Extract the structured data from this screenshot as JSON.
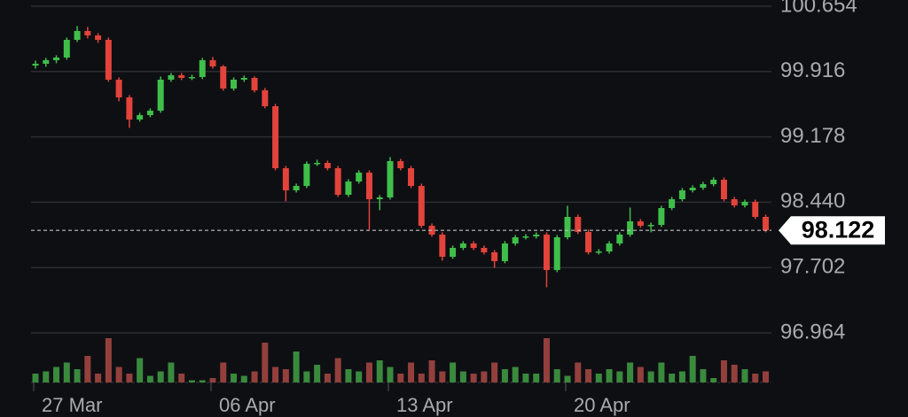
{
  "chart_data": {
    "type": "candlestick",
    "x": [
      "27 Mar",
      null,
      null,
      null,
      null,
      null,
      null,
      null,
      null,
      null,
      null,
      null,
      null,
      null,
      null,
      null,
      null,
      "06 Apr",
      null,
      null,
      null,
      null,
      null,
      null,
      null,
      null,
      null,
      null,
      null,
      null,
      null,
      null,
      null,
      null,
      "13 Apr",
      null,
      null,
      null,
      null,
      null,
      null,
      null,
      null,
      null,
      null,
      null,
      null,
      null,
      null,
      null,
      null,
      "20 Apr",
      null,
      null,
      null,
      null,
      null,
      null,
      null,
      null,
      null,
      null,
      null,
      null,
      null,
      null,
      null,
      null,
      null,
      null,
      null
    ],
    "open": [
      99.984,
      100.004,
      100.044,
      100.074,
      100.274,
      100.374,
      100.324,
      100.274,
      99.824,
      99.624,
      99.374,
      99.424,
      99.474,
      99.824,
      99.874,
      99.844,
      99.854,
      100.044,
      99.974,
      99.724,
      99.824,
      99.844,
      99.704,
      99.524,
      98.824,
      98.574,
      98.624,
      98.874,
      98.884,
      98.824,
      98.524,
      98.674,
      98.774,
      98.474,
      98.494,
      98.904,
      98.824,
      98.624,
      98.174,
      98.074,
      97.824,
      97.924,
      97.974,
      97.924,
      97.874,
      97.774,
      97.974,
      98.044,
      98.054,
      98.074,
      97.674,
      98.044,
      98.274,
      98.104,
      97.874,
      97.884,
      97.974,
      98.074,
      98.224,
      98.174,
      98.184,
      98.374,
      98.474,
      98.574,
      98.604,
      98.644,
      98.694,
      98.474,
      98.404,
      98.444,
      98.274
    ],
    "high": [
      100.04,
      100.07,
      100.1,
      100.3,
      100.43,
      100.42,
      100.35,
      100.3,
      99.85,
      99.65,
      99.45,
      99.5,
      99.86,
      99.9,
      99.9,
      99.88,
      100.07,
      100.08,
      99.99,
      99.85,
      99.87,
      99.86,
      99.73,
      99.55,
      98.85,
      98.65,
      98.9,
      98.92,
      98.91,
      98.85,
      98.7,
      98.8,
      98.8,
      98.52,
      98.95,
      98.93,
      98.85,
      98.65,
      98.2,
      98.1,
      97.95,
      98.0,
      98.0,
      97.95,
      97.9,
      98.0,
      98.07,
      98.08,
      98.1,
      98.1,
      98.07,
      98.4,
      98.3,
      98.13,
      97.91,
      98.0,
      98.1,
      98.38,
      98.25,
      98.21,
      98.4,
      98.5,
      98.6,
      98.63,
      98.67,
      98.72,
      98.72,
      98.5,
      98.47,
      98.47,
      98.3
    ],
    "low": [
      99.95,
      99.97,
      100.01,
      100.05,
      100.25,
      100.29,
      100.24,
      99.8,
      99.58,
      99.28,
      99.35,
      99.4,
      99.45,
      99.8,
      99.82,
      99.82,
      99.83,
      99.95,
      99.7,
      99.7,
      99.8,
      99.68,
      99.5,
      98.8,
      98.45,
      98.55,
      98.6,
      98.85,
      98.8,
      98.5,
      98.5,
      98.65,
      98.13,
      98.35,
      98.47,
      98.8,
      98.6,
      98.15,
      98.05,
      97.78,
      97.8,
      97.9,
      97.9,
      97.85,
      97.7,
      97.75,
      97.95,
      98.02,
      98.03,
      97.48,
      97.65,
      98.02,
      98.08,
      97.85,
      97.85,
      97.86,
      97.95,
      98.05,
      98.15,
      98.1,
      98.16,
      98.35,
      98.45,
      98.55,
      98.58,
      98.62,
      98.45,
      98.38,
      98.38,
      98.25,
      98.1
    ],
    "close": [
      100.004,
      100.044,
      100.074,
      100.274,
      100.374,
      100.324,
      100.274,
      99.824,
      99.624,
      99.374,
      99.424,
      99.474,
      99.824,
      99.874,
      99.844,
      99.854,
      100.044,
      99.974,
      99.724,
      99.824,
      99.844,
      99.704,
      99.524,
      98.824,
      98.574,
      98.624,
      98.874,
      98.884,
      98.824,
      98.524,
      98.674,
      98.774,
      98.474,
      98.494,
      98.904,
      98.824,
      98.624,
      98.174,
      98.074,
      97.824,
      97.924,
      97.974,
      97.924,
      97.874,
      97.774,
      97.974,
      98.044,
      98.054,
      98.074,
      97.674,
      98.044,
      98.274,
      98.104,
      97.874,
      97.884,
      97.974,
      98.074,
      98.224,
      98.174,
      98.184,
      98.374,
      98.474,
      98.574,
      98.604,
      98.644,
      98.694,
      98.474,
      98.404,
      98.444,
      98.274,
      98.122
    ],
    "volume": [
      20,
      25,
      35,
      45,
      30,
      60,
      20,
      100,
      35,
      20,
      55,
      15,
      25,
      45,
      20,
      5,
      5,
      10,
      45,
      20,
      15,
      25,
      90,
      35,
      30,
      70,
      25,
      40,
      20,
      55,
      30,
      25,
      45,
      50,
      35,
      20,
      45,
      20,
      50,
      25,
      45,
      25,
      20,
      25,
      45,
      30,
      35,
      20,
      20,
      100,
      30,
      15,
      45,
      30,
      20,
      30,
      25,
      45,
      35,
      25,
      45,
      20,
      25,
      60,
      30,
      10,
      50,
      40,
      30,
      20,
      25
    ],
    "ylim": [
      96.404,
      100.724
    ],
    "yticks": [
      100.654,
      99.916,
      99.178,
      {
        "value": 98.44,
        "label": "98.440"
      },
      97.702,
      96.964
    ],
    "last_price": 98.122,
    "grid": true,
    "up_color": "#3fbf4a",
    "down_color": "#e2433a",
    "volume_up_color": "#3a8a3e",
    "volume_down_color": "#93403d"
  }
}
